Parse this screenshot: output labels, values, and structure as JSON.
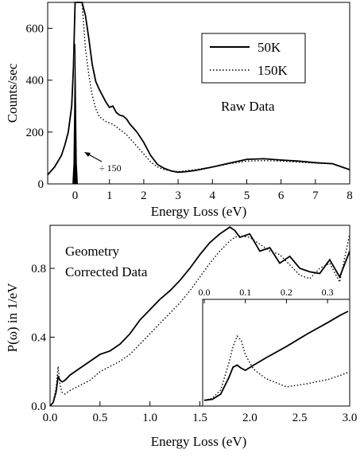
{
  "chart_data": [
    {
      "type": "line",
      "xlabel": "Energy Loss (eV)",
      "ylabel": "Counts/sec",
      "xlim": [
        -0.8,
        8
      ],
      "ylim": [
        0,
        700
      ],
      "xticks": [
        "0",
        "1",
        "2",
        "3",
        "4",
        "5",
        "6",
        "7",
        "8"
      ],
      "yticks": [
        "0",
        "200",
        "400",
        "600"
      ],
      "annotation": "Raw Data",
      "peak_note": "÷ 150",
      "legend": {
        "placement": "top-right",
        "entries": [
          "50K",
          "150K"
        ]
      },
      "series": [
        {
          "name": "50K",
          "style": "solid",
          "x": [
            -0.8,
            -0.6,
            -0.4,
            -0.3,
            -0.2,
            -0.1,
            -0.05,
            0.0,
            0.05,
            0.1,
            0.15,
            0.2,
            0.3,
            0.4,
            0.5,
            0.6,
            0.7,
            0.8,
            0.9,
            1.0,
            1.1,
            1.2,
            1.3,
            1.4,
            1.5,
            1.6,
            1.7,
            1.8,
            1.9,
            2.0,
            2.2,
            2.4,
            2.6,
            2.8,
            3.0,
            3.2,
            3.5,
            4.0,
            4.5,
            5.0,
            5.5,
            6.0,
            6.5,
            7.0,
            7.5,
            8.0
          ],
          "y": [
            35,
            65,
            110,
            150,
            200,
            300,
            450,
            700,
            700,
            700,
            700,
            700,
            650,
            560,
            460,
            395,
            365,
            340,
            315,
            295,
            300,
            275,
            265,
            262,
            250,
            230,
            215,
            200,
            180,
            160,
            110,
            75,
            60,
            50,
            45,
            47,
            52,
            65,
            80,
            95,
            97,
            92,
            88,
            82,
            78,
            55
          ]
        },
        {
          "name": "150K",
          "style": "dotted",
          "x": [
            -0.8,
            -0.6,
            -0.4,
            -0.3,
            -0.2,
            -0.1,
            -0.05,
            0.0,
            0.05,
            0.1,
            0.15,
            0.2,
            0.3,
            0.4,
            0.5,
            0.6,
            0.7,
            0.8,
            0.9,
            1.0,
            1.1,
            1.2,
            1.3,
            1.4,
            1.5,
            1.6,
            1.7,
            1.8,
            1.9,
            2.0,
            2.2,
            2.4,
            2.6,
            2.8,
            3.0,
            3.2,
            3.5,
            4.0,
            4.5,
            5.0,
            5.5,
            6.0,
            6.5,
            7.0,
            7.5,
            8.0
          ],
          "y": [
            35,
            65,
            110,
            150,
            200,
            300,
            450,
            700,
            700,
            700,
            700,
            700,
            520,
            420,
            340,
            290,
            260,
            250,
            240,
            235,
            230,
            220,
            210,
            200,
            190,
            175,
            160,
            145,
            130,
            115,
            85,
            65,
            55,
            50,
            47,
            50,
            55,
            65,
            78,
            88,
            90,
            88,
            84,
            80,
            78,
            55
          ]
        },
        {
          "name": "elastic peak",
          "style": "filled",
          "x": [
            -0.07,
            -0.04,
            -0.02,
            0.0,
            0.02,
            0.04,
            0.07
          ],
          "y": [
            0,
            80,
            300,
            540,
            300,
            80,
            0
          ]
        }
      ]
    },
    {
      "type": "line",
      "xlabel": "Energy Loss (eV)",
      "ylabel": "P(ω) in 1/eV",
      "xlim": [
        0,
        3
      ],
      "ylim": [
        0,
        1.05
      ],
      "xticks": [
        "0.0",
        "0.5",
        "1.0",
        "1.5",
        "2.0",
        "2.5",
        "3.0"
      ],
      "yticks": [
        "0.0",
        "0.4",
        "0.8"
      ],
      "annotation_lines": [
        "Geometry",
        "Corrected Data"
      ],
      "series": [
        {
          "name": "50K",
          "style": "solid",
          "x": [
            0.0,
            0.03,
            0.06,
            0.08,
            0.1,
            0.12,
            0.15,
            0.2,
            0.3,
            0.4,
            0.5,
            0.6,
            0.7,
            0.8,
            0.9,
            1.0,
            1.1,
            1.2,
            1.3,
            1.4,
            1.5,
            1.6,
            1.7,
            1.8,
            1.85,
            1.9,
            2.0,
            2.1,
            2.2,
            2.3,
            2.4,
            2.5,
            2.6,
            2.7,
            2.8,
            2.9,
            3.0
          ],
          "y": [
            0.0,
            0.02,
            0.08,
            0.17,
            0.15,
            0.14,
            0.15,
            0.18,
            0.22,
            0.26,
            0.3,
            0.32,
            0.36,
            0.42,
            0.5,
            0.56,
            0.62,
            0.67,
            0.73,
            0.8,
            0.88,
            0.95,
            1.0,
            1.04,
            1.02,
            0.98,
            1.0,
            0.9,
            0.92,
            0.83,
            0.87,
            0.8,
            0.78,
            0.77,
            0.85,
            0.75,
            0.9
          ]
        },
        {
          "name": "150K",
          "style": "dotted",
          "x": [
            0.0,
            0.03,
            0.06,
            0.08,
            0.1,
            0.12,
            0.15,
            0.2,
            0.3,
            0.4,
            0.5,
            0.6,
            0.7,
            0.8,
            0.9,
            1.0,
            1.1,
            1.2,
            1.3,
            1.4,
            1.5,
            1.6,
            1.7,
            1.8,
            1.85,
            1.9,
            2.0,
            2.1,
            2.2,
            2.3,
            2.4,
            2.5,
            2.6,
            2.7,
            2.8,
            2.9,
            3.0
          ],
          "y": [
            0.0,
            0.02,
            0.1,
            0.23,
            0.12,
            0.08,
            0.07,
            0.09,
            0.12,
            0.15,
            0.2,
            0.23,
            0.26,
            0.3,
            0.36,
            0.42,
            0.48,
            0.54,
            0.6,
            0.67,
            0.75,
            0.83,
            0.9,
            0.96,
            0.98,
            0.99,
            0.98,
            0.94,
            0.9,
            0.88,
            0.82,
            0.76,
            0.74,
            0.8,
            0.83,
            0.72,
            1.0
          ]
        }
      ]
    },
    {
      "type": "line",
      "role": "inset",
      "xlim": [
        0,
        0.35
      ],
      "ylim": [
        0,
        1
      ],
      "xticks": [
        "0.0",
        "0.1",
        "0.2",
        "0.3"
      ],
      "series": [
        {
          "name": "50K",
          "style": "solid",
          "x": [
            0.0,
            0.02,
            0.04,
            0.06,
            0.07,
            0.08,
            0.09,
            0.1,
            0.12,
            0.15,
            0.2,
            0.25,
            0.3,
            0.33,
            0.35
          ],
          "y": [
            0.04,
            0.05,
            0.1,
            0.26,
            0.36,
            0.38,
            0.35,
            0.33,
            0.38,
            0.45,
            0.56,
            0.68,
            0.79,
            0.86,
            0.9
          ]
        },
        {
          "name": "150K",
          "style": "dotted",
          "x": [
            0.0,
            0.02,
            0.04,
            0.06,
            0.07,
            0.08,
            0.09,
            0.1,
            0.12,
            0.15,
            0.2,
            0.25,
            0.3,
            0.33,
            0.35
          ],
          "y": [
            0.04,
            0.06,
            0.14,
            0.4,
            0.56,
            0.66,
            0.62,
            0.48,
            0.34,
            0.25,
            0.17,
            0.2,
            0.24,
            0.28,
            0.31
          ]
        }
      ]
    }
  ]
}
